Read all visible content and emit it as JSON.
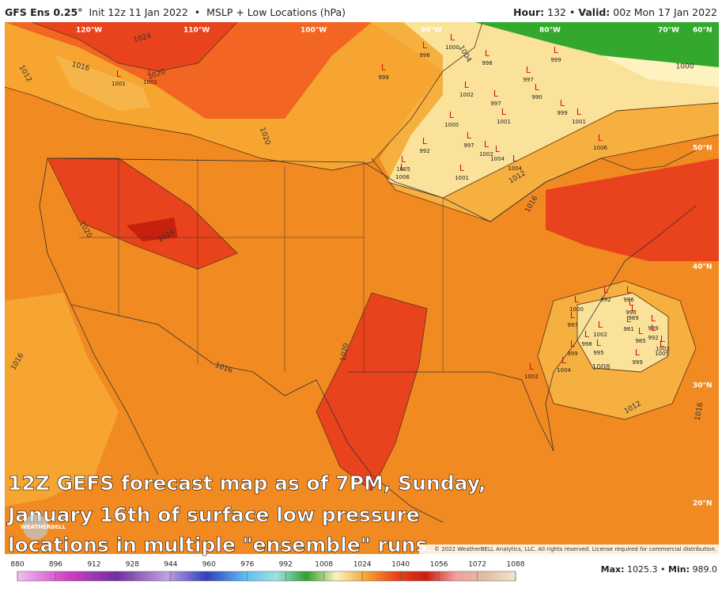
{
  "header": {
    "model": "GFS Ens 0.25°",
    "init": "Init 12z 11 Jan 2022",
    "separator": "•",
    "product": "MSLP + Low Locations (hPa)",
    "hour_label": "Hour:",
    "hour": "132",
    "valid_label": "Valid:",
    "valid": "00z Mon 17 Jan 2022"
  },
  "map": {
    "longitudes": [
      "120°W",
      "110°W",
      "100°W",
      "90°W",
      "80°W",
      "70°W",
      "60°N"
    ],
    "latitudes": [
      "50°N",
      "40°N",
      "30°N",
      "20°N"
    ],
    "isobar_labels": [
      1024,
      1016,
      1012,
      1020,
      1020,
      1020,
      1024,
      1016,
      1016,
      1020,
      1016,
      1012,
      1008,
      1012,
      1016,
      1000,
      1004
    ],
    "low_symbol": "L",
    "lows": [
      999,
      996,
      1000,
      998,
      999,
      1002,
      997,
      990,
      997,
      1000,
      1001,
      999,
      1001,
      992,
      997,
      1002,
      1004,
      1004,
      1001,
      1006,
      1006,
      1005,
      1001,
      1001,
      992,
      986,
      1000,
      990,
      989,
      997,
      981,
      989,
      992,
      985,
      1002,
      998,
      1002,
      1005,
      995,
      999,
      1004,
      999,
      1002
    ]
  },
  "caption": [
    "12Z GEFS forecast map as of 7PM, Sunday,",
    "January 16th of surface low pressure",
    "locations in multiple \"ensemble\" runs"
  ],
  "logo": "WEATHERBELL",
  "copyright": "© 2022 WeatherBELL Analytics, LLC. All rights reserved. License required for commercial distribution.",
  "colorbar": {
    "ticks": [
      880,
      896,
      912,
      928,
      944,
      960,
      976,
      992,
      1008,
      1024,
      1040,
      1056,
      1072,
      1088
    ]
  },
  "stats": {
    "max_label": "Max:",
    "max": "1025.3",
    "min_label": "Min:",
    "min": "989.0"
  }
}
